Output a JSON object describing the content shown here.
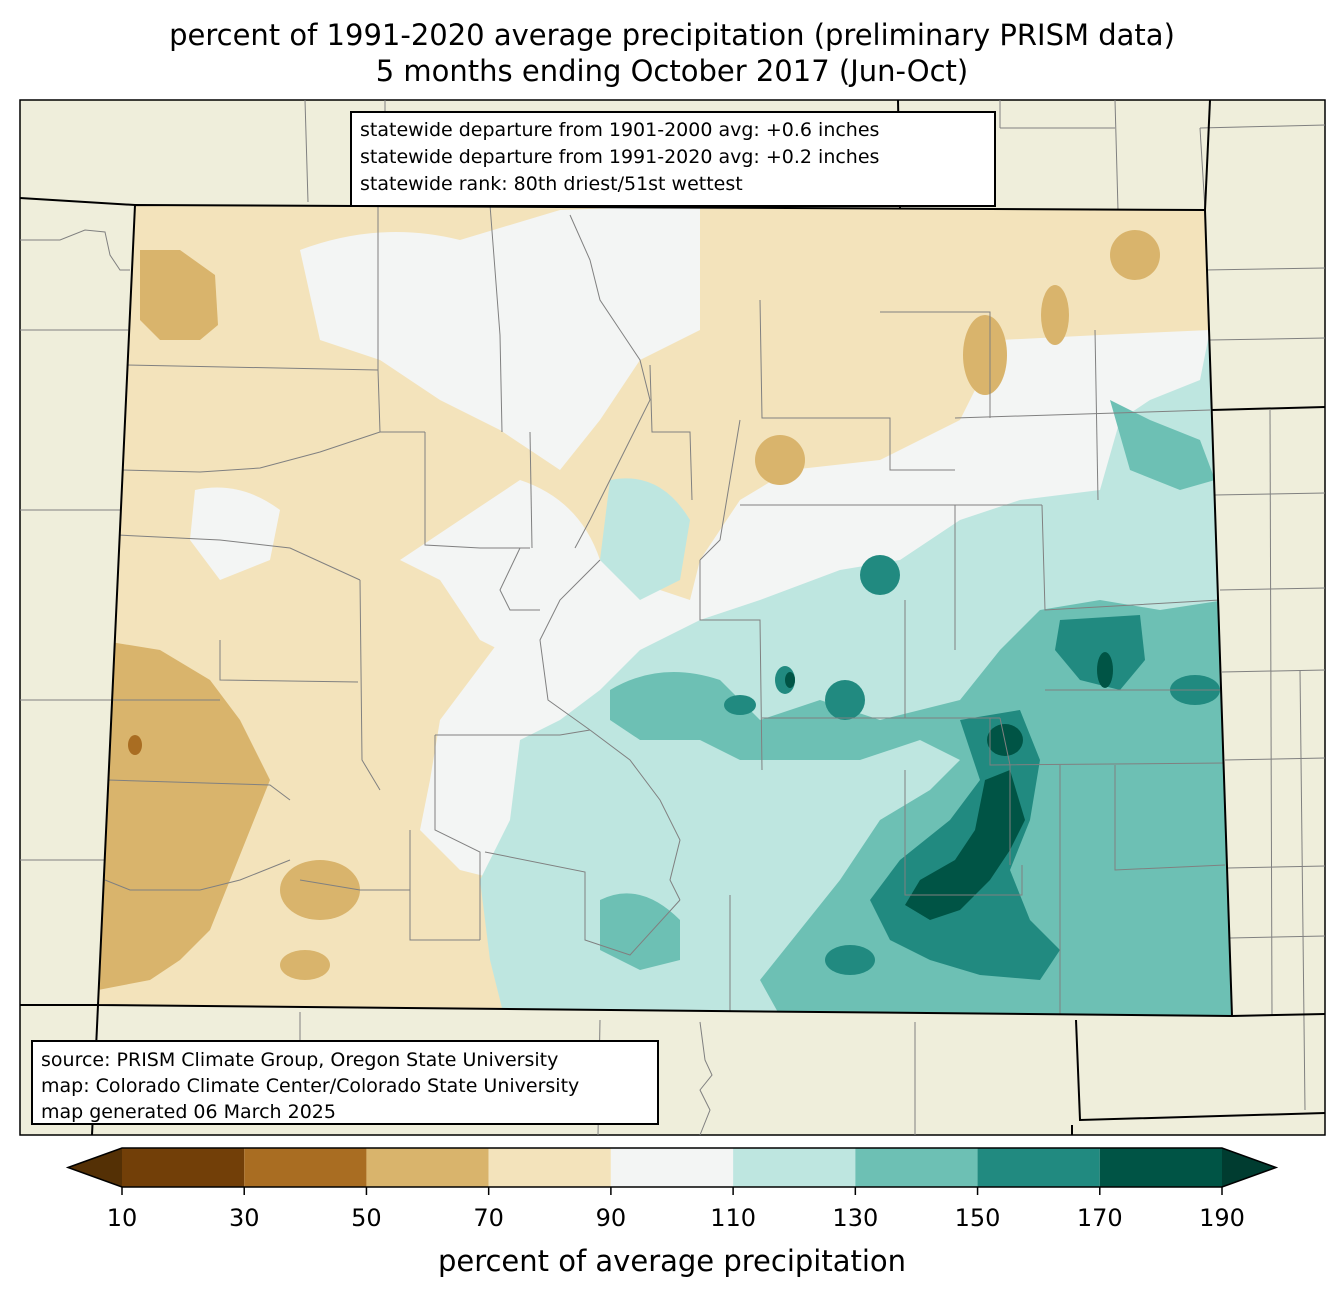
{
  "title": {
    "line1": "percent of 1991-2020 average precipitation (preliminary PRISM data)",
    "line2": "5 months ending October 2017 (Jun-Oct)"
  },
  "stats": {
    "line1": "statewide departure from 1901-2000 avg: +0.6 inches",
    "line2": "statewide departure from 1991-2020 avg: +0.2 inches",
    "line3": "statewide rank: 80th driest/51st wettest"
  },
  "source": {
    "line1": "source: PRISM Climate Group, Oregon State University",
    "line2": "map: Colorado Climate Center/Colorado State University",
    "line3": "map generated 06 March 2025"
  },
  "legend": {
    "title": "percent of average precipitation",
    "ticks": [
      "10",
      "30",
      "50",
      "70",
      "90",
      "110",
      "130",
      "150",
      "170",
      "190"
    ],
    "under_color": "#543005",
    "over_color": "#003c30",
    "bins": [
      {
        "min": 10,
        "max": 30,
        "color": "#723f08"
      },
      {
        "min": 30,
        "max": 50,
        "color": "#a96d22"
      },
      {
        "min": 50,
        "max": 70,
        "color": "#d9b46c"
      },
      {
        "min": 70,
        "max": 90,
        "color": "#f3e3bb"
      },
      {
        "min": 90,
        "max": 110,
        "color": "#f3f5f4"
      },
      {
        "min": 110,
        "max": 130,
        "color": "#bee6e0"
      },
      {
        "min": 130,
        "max": 150,
        "color": "#6dc0b4"
      },
      {
        "min": 150,
        "max": 170,
        "color": "#218a80"
      },
      {
        "min": 170,
        "max": 190,
        "color": "#005445"
      }
    ]
  },
  "colors": {
    "background_land": "#efeedb",
    "county_lines": "#808080",
    "state_lines": "#000000"
  }
}
